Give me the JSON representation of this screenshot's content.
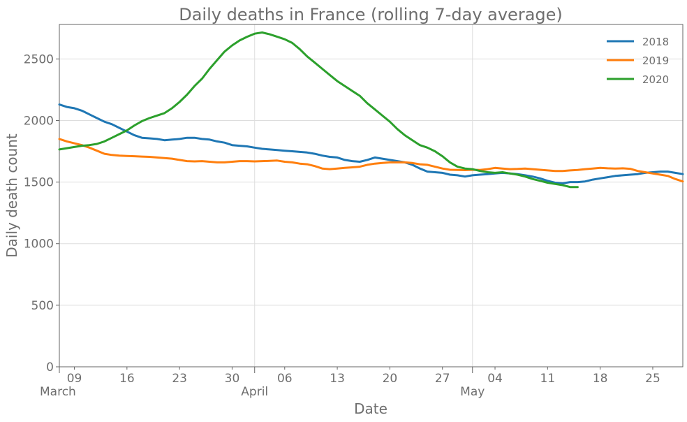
{
  "chart_data": {
    "type": "line",
    "title": "Daily deaths in France (rolling 7-day average)",
    "xlabel": "Date",
    "ylabel": "Daily death count",
    "x_domain": [
      "2020-03-07",
      "2020-05-29"
    ],
    "ylim": [
      0,
      2780
    ],
    "yticks": [
      0,
      500,
      1000,
      1500,
      2000,
      2500
    ],
    "xticks": [
      {
        "date": "2020-03-09",
        "label": "09"
      },
      {
        "date": "2020-03-16",
        "label": "16"
      },
      {
        "date": "2020-03-23",
        "label": "23"
      },
      {
        "date": "2020-03-30",
        "label": "30"
      },
      {
        "date": "2020-04-06",
        "label": "06"
      },
      {
        "date": "2020-04-13",
        "label": "13"
      },
      {
        "date": "2020-04-20",
        "label": "20"
      },
      {
        "date": "2020-04-27",
        "label": "27"
      },
      {
        "date": "2020-05-04",
        "label": "04"
      },
      {
        "date": "2020-05-11",
        "label": "11"
      },
      {
        "date": "2020-05-18",
        "label": "18"
      },
      {
        "date": "2020-05-25",
        "label": "25"
      }
    ],
    "month_ticks": [
      {
        "date": "2020-03-07",
        "label": "March"
      },
      {
        "date": "2020-04-02",
        "label": "April"
      },
      {
        "date": "2020-05-01",
        "label": "May"
      }
    ],
    "grid": true,
    "legend_position": "top-right",
    "series": [
      {
        "name": "2018",
        "color": "#1f77b4",
        "points": [
          [
            "2020-03-07",
            2130
          ],
          [
            "2020-03-08",
            2110
          ],
          [
            "2020-03-09",
            2100
          ],
          [
            "2020-03-10",
            2080
          ],
          [
            "2020-03-11",
            2050
          ],
          [
            "2020-03-12",
            2020
          ],
          [
            "2020-03-13",
            1990
          ],
          [
            "2020-03-14",
            1970
          ],
          [
            "2020-03-15",
            1940
          ],
          [
            "2020-03-16",
            1910
          ],
          [
            "2020-03-17",
            1880
          ],
          [
            "2020-03-18",
            1860
          ],
          [
            "2020-03-19",
            1855
          ],
          [
            "2020-03-20",
            1850
          ],
          [
            "2020-03-21",
            1840
          ],
          [
            "2020-03-22",
            1845
          ],
          [
            "2020-03-23",
            1850
          ],
          [
            "2020-03-24",
            1860
          ],
          [
            "2020-03-25",
            1860
          ],
          [
            "2020-03-26",
            1850
          ],
          [
            "2020-03-27",
            1845
          ],
          [
            "2020-03-28",
            1830
          ],
          [
            "2020-03-29",
            1820
          ],
          [
            "2020-03-30",
            1800
          ],
          [
            "2020-03-31",
            1795
          ],
          [
            "2020-04-01",
            1790
          ],
          [
            "2020-04-02",
            1780
          ],
          [
            "2020-04-03",
            1770
          ],
          [
            "2020-04-04",
            1765
          ],
          [
            "2020-04-05",
            1760
          ],
          [
            "2020-04-06",
            1755
          ],
          [
            "2020-04-07",
            1750
          ],
          [
            "2020-04-08",
            1745
          ],
          [
            "2020-04-09",
            1740
          ],
          [
            "2020-04-10",
            1730
          ],
          [
            "2020-04-11",
            1715
          ],
          [
            "2020-04-12",
            1705
          ],
          [
            "2020-04-13",
            1700
          ],
          [
            "2020-04-14",
            1680
          ],
          [
            "2020-04-15",
            1670
          ],
          [
            "2020-04-16",
            1665
          ],
          [
            "2020-04-17",
            1680
          ],
          [
            "2020-04-18",
            1700
          ],
          [
            "2020-04-19",
            1690
          ],
          [
            "2020-04-20",
            1680
          ],
          [
            "2020-04-21",
            1670
          ],
          [
            "2020-04-22",
            1660
          ],
          [
            "2020-04-23",
            1640
          ],
          [
            "2020-04-24",
            1610
          ],
          [
            "2020-04-25",
            1585
          ],
          [
            "2020-04-26",
            1580
          ],
          [
            "2020-04-27",
            1575
          ],
          [
            "2020-04-28",
            1560
          ],
          [
            "2020-04-29",
            1555
          ],
          [
            "2020-04-30",
            1545
          ],
          [
            "2020-05-01",
            1555
          ],
          [
            "2020-05-02",
            1560
          ],
          [
            "2020-05-03",
            1565
          ],
          [
            "2020-05-04",
            1570
          ],
          [
            "2020-05-05",
            1575
          ],
          [
            "2020-05-06",
            1570
          ],
          [
            "2020-05-07",
            1565
          ],
          [
            "2020-05-08",
            1555
          ],
          [
            "2020-05-09",
            1545
          ],
          [
            "2020-05-10",
            1530
          ],
          [
            "2020-05-11",
            1510
          ],
          [
            "2020-05-12",
            1495
          ],
          [
            "2020-05-13",
            1490
          ],
          [
            "2020-05-14",
            1500
          ],
          [
            "2020-05-15",
            1500
          ],
          [
            "2020-05-16",
            1505
          ],
          [
            "2020-05-17",
            1520
          ],
          [
            "2020-05-18",
            1530
          ],
          [
            "2020-05-19",
            1540
          ],
          [
            "2020-05-20",
            1550
          ],
          [
            "2020-05-21",
            1555
          ],
          [
            "2020-05-22",
            1560
          ],
          [
            "2020-05-23",
            1565
          ],
          [
            "2020-05-24",
            1575
          ],
          [
            "2020-05-25",
            1580
          ],
          [
            "2020-05-26",
            1585
          ],
          [
            "2020-05-27",
            1585
          ],
          [
            "2020-05-28",
            1575
          ],
          [
            "2020-05-29",
            1565
          ]
        ]
      },
      {
        "name": "2019",
        "color": "#ff7f0e",
        "points": [
          [
            "2020-03-07",
            1850
          ],
          [
            "2020-03-08",
            1830
          ],
          [
            "2020-03-09",
            1815
          ],
          [
            "2020-03-10",
            1800
          ],
          [
            "2020-03-11",
            1780
          ],
          [
            "2020-03-12",
            1755
          ],
          [
            "2020-03-13",
            1730
          ],
          [
            "2020-03-14",
            1720
          ],
          [
            "2020-03-15",
            1715
          ],
          [
            "2020-03-16",
            1712
          ],
          [
            "2020-03-17",
            1710
          ],
          [
            "2020-03-18",
            1707
          ],
          [
            "2020-03-19",
            1705
          ],
          [
            "2020-03-20",
            1700
          ],
          [
            "2020-03-21",
            1695
          ],
          [
            "2020-03-22",
            1690
          ],
          [
            "2020-03-23",
            1680
          ],
          [
            "2020-03-24",
            1670
          ],
          [
            "2020-03-25",
            1668
          ],
          [
            "2020-03-26",
            1670
          ],
          [
            "2020-03-27",
            1665
          ],
          [
            "2020-03-28",
            1660
          ],
          [
            "2020-03-29",
            1660
          ],
          [
            "2020-03-30",
            1665
          ],
          [
            "2020-03-31",
            1670
          ],
          [
            "2020-04-01",
            1670
          ],
          [
            "2020-04-02",
            1668
          ],
          [
            "2020-04-03",
            1670
          ],
          [
            "2020-04-04",
            1672
          ],
          [
            "2020-04-05",
            1675
          ],
          [
            "2020-04-06",
            1665
          ],
          [
            "2020-04-07",
            1660
          ],
          [
            "2020-04-08",
            1650
          ],
          [
            "2020-04-09",
            1645
          ],
          [
            "2020-04-10",
            1630
          ],
          [
            "2020-04-11",
            1610
          ],
          [
            "2020-04-12",
            1605
          ],
          [
            "2020-04-13",
            1610
          ],
          [
            "2020-04-14",
            1615
          ],
          [
            "2020-04-15",
            1620
          ],
          [
            "2020-04-16",
            1625
          ],
          [
            "2020-04-17",
            1640
          ],
          [
            "2020-04-18",
            1650
          ],
          [
            "2020-04-19",
            1655
          ],
          [
            "2020-04-20",
            1660
          ],
          [
            "2020-04-21",
            1660
          ],
          [
            "2020-04-22",
            1660
          ],
          [
            "2020-04-23",
            1655
          ],
          [
            "2020-04-24",
            1645
          ],
          [
            "2020-04-25",
            1640
          ],
          [
            "2020-04-26",
            1625
          ],
          [
            "2020-04-27",
            1610
          ],
          [
            "2020-04-28",
            1600
          ],
          [
            "2020-04-29",
            1598
          ],
          [
            "2020-04-30",
            1597
          ],
          [
            "2020-05-01",
            1600
          ],
          [
            "2020-05-02",
            1598
          ],
          [
            "2020-05-03",
            1605
          ],
          [
            "2020-05-04",
            1615
          ],
          [
            "2020-05-05",
            1610
          ],
          [
            "2020-05-06",
            1605
          ],
          [
            "2020-05-07",
            1607
          ],
          [
            "2020-05-08",
            1610
          ],
          [
            "2020-05-09",
            1605
          ],
          [
            "2020-05-10",
            1600
          ],
          [
            "2020-05-11",
            1595
          ],
          [
            "2020-05-12",
            1590
          ],
          [
            "2020-05-13",
            1590
          ],
          [
            "2020-05-14",
            1595
          ],
          [
            "2020-05-15",
            1598
          ],
          [
            "2020-05-16",
            1605
          ],
          [
            "2020-05-17",
            1610
          ],
          [
            "2020-05-18",
            1615
          ],
          [
            "2020-05-19",
            1612
          ],
          [
            "2020-05-20",
            1610
          ],
          [
            "2020-05-21",
            1612
          ],
          [
            "2020-05-22",
            1608
          ],
          [
            "2020-05-23",
            1590
          ],
          [
            "2020-05-24",
            1580
          ],
          [
            "2020-05-25",
            1570
          ],
          [
            "2020-05-26",
            1560
          ],
          [
            "2020-05-27",
            1550
          ],
          [
            "2020-05-28",
            1525
          ],
          [
            "2020-05-29",
            1505
          ]
        ]
      },
      {
        "name": "2020",
        "color": "#2ca02c",
        "points": [
          [
            "2020-03-07",
            1765
          ],
          [
            "2020-03-08",
            1775
          ],
          [
            "2020-03-09",
            1785
          ],
          [
            "2020-03-10",
            1795
          ],
          [
            "2020-03-11",
            1800
          ],
          [
            "2020-03-12",
            1810
          ],
          [
            "2020-03-13",
            1830
          ],
          [
            "2020-03-14",
            1860
          ],
          [
            "2020-03-15",
            1890
          ],
          [
            "2020-03-16",
            1920
          ],
          [
            "2020-03-17",
            1960
          ],
          [
            "2020-03-18",
            1995
          ],
          [
            "2020-03-19",
            2020
          ],
          [
            "2020-03-20",
            2040
          ],
          [
            "2020-03-21",
            2060
          ],
          [
            "2020-03-22",
            2100
          ],
          [
            "2020-03-23",
            2150
          ],
          [
            "2020-03-24",
            2210
          ],
          [
            "2020-03-25",
            2280
          ],
          [
            "2020-03-26",
            2340
          ],
          [
            "2020-03-27",
            2420
          ],
          [
            "2020-03-28",
            2490
          ],
          [
            "2020-03-29",
            2560
          ],
          [
            "2020-03-30",
            2610
          ],
          [
            "2020-03-31",
            2650
          ],
          [
            "2020-04-01",
            2680
          ],
          [
            "2020-04-02",
            2705
          ],
          [
            "2020-04-03",
            2715
          ],
          [
            "2020-04-04",
            2700
          ],
          [
            "2020-04-05",
            2680
          ],
          [
            "2020-04-06",
            2660
          ],
          [
            "2020-04-07",
            2630
          ],
          [
            "2020-04-08",
            2580
          ],
          [
            "2020-04-09",
            2520
          ],
          [
            "2020-04-10",
            2470
          ],
          [
            "2020-04-11",
            2420
          ],
          [
            "2020-04-12",
            2370
          ],
          [
            "2020-04-13",
            2320
          ],
          [
            "2020-04-14",
            2280
          ],
          [
            "2020-04-15",
            2240
          ],
          [
            "2020-04-16",
            2200
          ],
          [
            "2020-04-17",
            2140
          ],
          [
            "2020-04-18",
            2090
          ],
          [
            "2020-04-19",
            2040
          ],
          [
            "2020-04-20",
            1990
          ],
          [
            "2020-04-21",
            1930
          ],
          [
            "2020-04-22",
            1880
          ],
          [
            "2020-04-23",
            1840
          ],
          [
            "2020-04-24",
            1800
          ],
          [
            "2020-04-25",
            1780
          ],
          [
            "2020-04-26",
            1750
          ],
          [
            "2020-04-27",
            1710
          ],
          [
            "2020-04-28",
            1660
          ],
          [
            "2020-04-29",
            1625
          ],
          [
            "2020-04-30",
            1610
          ],
          [
            "2020-05-01",
            1605
          ],
          [
            "2020-05-02",
            1590
          ],
          [
            "2020-05-03",
            1580
          ],
          [
            "2020-05-04",
            1575
          ],
          [
            "2020-05-05",
            1580
          ],
          [
            "2020-05-06",
            1570
          ],
          [
            "2020-05-07",
            1560
          ],
          [
            "2020-05-08",
            1545
          ],
          [
            "2020-05-09",
            1525
          ],
          [
            "2020-05-10",
            1510
          ],
          [
            "2020-05-11",
            1495
          ],
          [
            "2020-05-12",
            1485
          ],
          [
            "2020-05-13",
            1475
          ],
          [
            "2020-05-14",
            1460
          ],
          [
            "2020-05-15",
            1460
          ]
        ]
      }
    ]
  }
}
